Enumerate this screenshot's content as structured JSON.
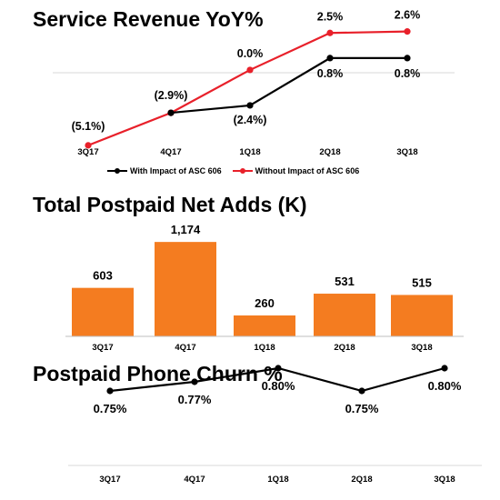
{
  "chart_data": [
    {
      "type": "line",
      "title": "Service Revenue YoY%",
      "categories": [
        "3Q17",
        "4Q17",
        "1Q18",
        "2Q18",
        "3Q18"
      ],
      "series": [
        {
          "name": "With Impact of ASC 606",
          "color": "#000000",
          "values": [
            null,
            -2.9,
            -2.4,
            0.8,
            0.8
          ],
          "labels": [
            "",
            "(2.9%)",
            "(2.4%)",
            "0.8%",
            "0.8%"
          ]
        },
        {
          "name": "Without Impact of ASC 606",
          "color": "#e8202a",
          "values": [
            -5.1,
            -2.9,
            0.0,
            2.5,
            2.6
          ],
          "labels": [
            "(5.1%)",
            "",
            "0.0%",
            "2.5%",
            "2.6%"
          ]
        }
      ],
      "ylim": [
        -5.6,
        3.5
      ],
      "legend": "bottom"
    },
    {
      "type": "bar",
      "title": "Total Postpaid Net Adds (K)",
      "categories": [
        "3Q17",
        "4Q17",
        "1Q18",
        "2Q18",
        "3Q18"
      ],
      "values": [
        603,
        1174,
        260,
        531,
        515
      ],
      "value_labels": [
        "603",
        "1,174",
        "260",
        "531",
        "515"
      ],
      "color": "#f47c20",
      "ylim": [
        0,
        1300
      ]
    },
    {
      "type": "line",
      "title": "Postpaid Phone Churn %",
      "categories": [
        "3Q17",
        "4Q17",
        "1Q18",
        "2Q18",
        "3Q18"
      ],
      "series": [
        {
          "color": "#000000",
          "values": [
            0.75,
            0.77,
            0.8,
            0.75,
            0.8
          ],
          "labels": [
            "0.75%",
            "0.77%",
            "0.80%",
            "0.75%",
            "0.80%"
          ]
        }
      ],
      "ylim": [
        0.65,
        0.85
      ]
    }
  ]
}
